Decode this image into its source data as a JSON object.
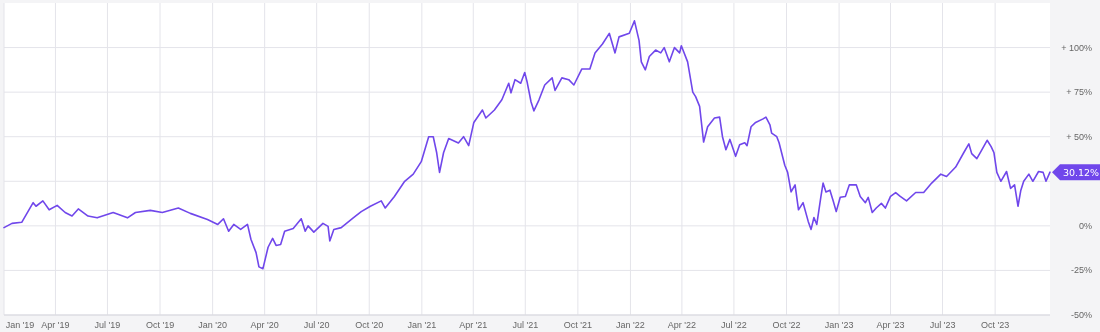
{
  "chart_data": {
    "type": "line",
    "xlim": [
      "2019-01-01",
      "2024-01-05"
    ],
    "ylim": [
      -50,
      125
    ],
    "xticks": [
      {
        "value": "2019-01-01",
        "label": "Jan '19"
      },
      {
        "value": "2019-04-01",
        "label": "Apr '19"
      },
      {
        "value": "2019-07-01",
        "label": "Jul '19"
      },
      {
        "value": "2019-10-01",
        "label": "Oct '19"
      },
      {
        "value": "2020-01-01",
        "label": "Jan '20"
      },
      {
        "value": "2020-04-01",
        "label": "Apr '20"
      },
      {
        "value": "2020-07-01",
        "label": "Jul '20"
      },
      {
        "value": "2020-10-01",
        "label": "Oct '20"
      },
      {
        "value": "2021-01-01",
        "label": "Jan '21"
      },
      {
        "value": "2021-04-01",
        "label": "Apr '21"
      },
      {
        "value": "2021-07-01",
        "label": "Jul '21"
      },
      {
        "value": "2021-10-01",
        "label": "Oct '21"
      },
      {
        "value": "2022-01-01",
        "label": "Jan '22"
      },
      {
        "value": "2022-04-01",
        "label": "Apr '22"
      },
      {
        "value": "2022-07-01",
        "label": "Jul '22"
      },
      {
        "value": "2022-10-01",
        "label": "Oct '22"
      },
      {
        "value": "2023-01-01",
        "label": "Jan '23"
      },
      {
        "value": "2023-04-01",
        "label": "Apr '23"
      },
      {
        "value": "2023-07-01",
        "label": "Jul '23"
      },
      {
        "value": "2023-10-01",
        "label": "Oct '23"
      }
    ],
    "yticks": [
      {
        "value": -50,
        "label": "-50%"
      },
      {
        "value": -25,
        "label": "-25%"
      },
      {
        "value": 0,
        "label": "0%"
      },
      {
        "value": 25,
        "label": null
      },
      {
        "value": 50,
        "label": "+ 50%"
      },
      {
        "value": 75,
        "label": "+ 75%"
      },
      {
        "value": 100,
        "label": "+ 100%"
      }
    ],
    "grid": true,
    "marker": "none",
    "line_style": "solid",
    "annotations": [
      {
        "text": "30.12%",
        "x": "2024-01-05",
        "y": 30.12
      }
    ],
    "series": [
      {
        "color": "#7047eb",
        "x": [
          "2019-01-01",
          "2019-01-15",
          "2019-02-01",
          "2019-02-21",
          "2019-02-26",
          "2019-03-10",
          "2019-03-21",
          "2019-04-04",
          "2019-04-18",
          "2019-04-30",
          "2019-05-11",
          "2019-05-28",
          "2019-06-13",
          "2019-07-11",
          "2019-08-05",
          "2019-08-19",
          "2019-09-14",
          "2019-10-05",
          "2019-11-02",
          "2019-11-23",
          "2019-12-23",
          "2020-01-10",
          "2020-01-20",
          "2020-01-29",
          "2020-02-07",
          "2020-02-19",
          "2020-03-02",
          "2020-03-08",
          "2020-03-17",
          "2020-03-22",
          "2020-03-29",
          "2020-04-07",
          "2020-04-15",
          "2020-04-21",
          "2020-04-29",
          "2020-05-06",
          "2020-05-21",
          "2020-06-04",
          "2020-06-11",
          "2020-06-16",
          "2020-06-26",
          "2020-07-12",
          "2020-07-21",
          "2020-07-24",
          "2020-07-31",
          "2020-08-13",
          "2020-09-03",
          "2020-09-17",
          "2020-10-03",
          "2020-10-22",
          "2020-10-29",
          "2020-11-14",
          "2020-12-02",
          "2020-12-17",
          "2020-12-31",
          "2021-01-13",
          "2021-01-21",
          "2021-01-27",
          "2021-02-01",
          "2021-02-08",
          "2021-02-17",
          "2021-03-06",
          "2021-03-15",
          "2021-03-24",
          "2021-04-02",
          "2021-04-17",
          "2021-04-23",
          "2021-05-08",
          "2021-05-21",
          "2021-06-02",
          "2021-06-06",
          "2021-06-13",
          "2021-06-23",
          "2021-06-30",
          "2021-07-04",
          "2021-07-11",
          "2021-07-16",
          "2021-07-25",
          "2021-08-04",
          "2021-08-17",
          "2021-08-22",
          "2021-09-03",
          "2021-09-15",
          "2021-09-24",
          "2021-10-08",
          "2021-10-22",
          "2021-10-31",
          "2021-11-13",
          "2021-11-25",
          "2021-12-05",
          "2021-12-12",
          "2021-12-30",
          "2022-01-08",
          "2022-01-16",
          "2022-01-20",
          "2022-01-27",
          "2022-02-03",
          "2022-02-14",
          "2022-02-23",
          "2022-03-01",
          "2022-03-10",
          "2022-03-19",
          "2022-03-28",
          "2022-03-31",
          "2022-04-11",
          "2022-04-20",
          "2022-04-25",
          "2022-05-02",
          "2022-05-09",
          "2022-05-16",
          "2022-05-28",
          "2022-06-06",
          "2022-06-11",
          "2022-06-17",
          "2022-06-24",
          "2022-07-04",
          "2022-07-11",
          "2022-07-20",
          "2022-07-24",
          "2022-07-31",
          "2022-08-08",
          "2022-08-21",
          "2022-08-26",
          "2022-09-02",
          "2022-09-05",
          "2022-09-14",
          "2022-09-18",
          "2022-09-28",
          "2022-10-03",
          "2022-10-09",
          "2022-10-16",
          "2022-10-22",
          "2022-10-30",
          "2022-11-08",
          "2022-11-13",
          "2022-11-18",
          "2022-11-23",
          "2022-11-30",
          "2022-12-04",
          "2022-12-09",
          "2022-12-16",
          "2022-12-22",
          "2022-12-27",
          "2023-01-03",
          "2023-01-12",
          "2023-01-19",
          "2023-01-31",
          "2023-02-07",
          "2023-02-16",
          "2023-02-21",
          "2023-02-28",
          "2023-03-07",
          "2023-03-16",
          "2023-03-23",
          "2023-04-01",
          "2023-04-10",
          "2023-04-18",
          "2023-04-29",
          "2023-05-15",
          "2023-05-29",
          "2023-06-12",
          "2023-06-28",
          "2023-07-08",
          "2023-07-24",
          "2023-08-07",
          "2023-08-16",
          "2023-08-21",
          "2023-08-30",
          "2023-09-06",
          "2023-09-17",
          "2023-09-24",
          "2023-09-29",
          "2023-10-04",
          "2023-10-11",
          "2023-10-21",
          "2023-10-28",
          "2023-11-04",
          "2023-11-10",
          "2023-11-15",
          "2023-11-20",
          "2023-11-29",
          "2023-12-06",
          "2023-12-16",
          "2023-12-24",
          "2023-12-29",
          "2024-01-05"
        ],
        "values": [
          -1,
          1.4,
          2,
          13,
          11,
          14,
          9,
          11.5,
          7.5,
          5.5,
          9.5,
          5.5,
          4.5,
          7.5,
          4.5,
          7.5,
          8.7,
          7.5,
          10,
          7,
          3.6,
          0.8,
          4,
          -3,
          0.8,
          -2,
          0.8,
          -7.5,
          -15,
          -23,
          -24,
          -12,
          -7,
          -11,
          -10.5,
          -3,
          -1.5,
          4,
          -3,
          0,
          -3.5,
          1.4,
          -0.3,
          -8.5,
          -2,
          -1,
          4.5,
          8,
          11,
          14,
          10,
          16.5,
          25,
          29,
          36,
          50,
          50,
          41,
          30,
          41,
          49,
          46.5,
          50,
          45,
          58,
          65,
          60.5,
          65,
          70.7,
          80,
          74.6,
          82,
          80,
          86,
          81,
          69.6,
          64.5,
          70.7,
          79,
          83,
          76,
          83,
          82,
          79,
          88,
          88,
          97,
          102,
          108,
          97,
          106,
          108,
          115,
          104,
          92,
          87.5,
          95,
          98.6,
          97,
          100,
          92,
          100,
          97,
          101,
          92,
          75,
          72.5,
          67,
          47,
          55.6,
          60.5,
          61,
          50,
          42.7,
          48.5,
          39,
          45.5,
          46.6,
          45,
          55.6,
          58,
          60,
          61,
          56.7,
          52,
          50,
          46.6,
          34,
          30,
          19,
          23,
          9,
          13,
          2.5,
          -2,
          4.7,
          0.8,
          16,
          24,
          19,
          20,
          13.7,
          8,
          16,
          16.5,
          23,
          23,
          16.5,
          13,
          16,
          7.5,
          10,
          12.6,
          10,
          16.5,
          18.7,
          16.5,
          14,
          18.7,
          18.7,
          24,
          29,
          27.7,
          33,
          41,
          46,
          40.5,
          37.7,
          41.6,
          48,
          44.4,
          41,
          30,
          25,
          30.5,
          21,
          23,
          11,
          20,
          25,
          29,
          25,
          30.5,
          30,
          25,
          30.12
        ]
      }
    ]
  }
}
